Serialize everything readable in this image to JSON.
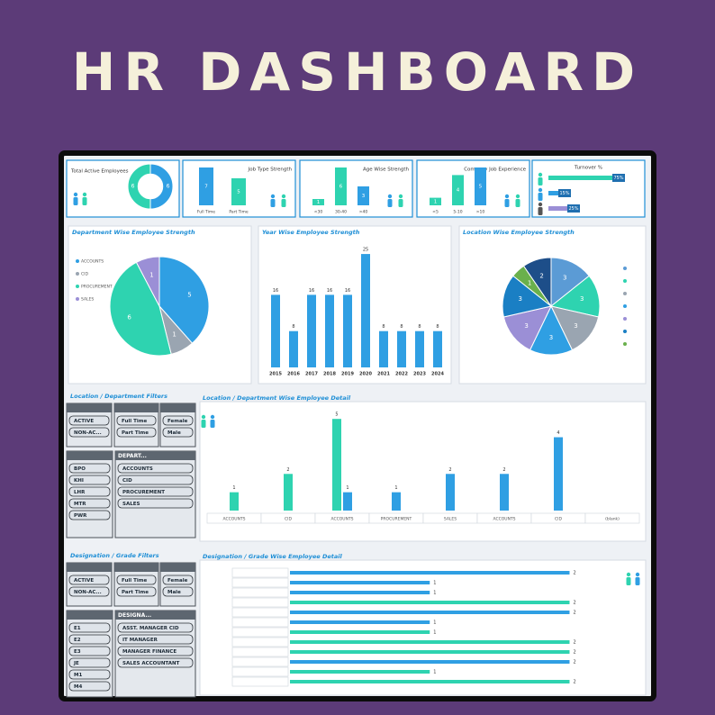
{
  "header": {
    "title": "HR DASHBOARD"
  },
  "kpis": [
    {
      "title": "Total Active Employees",
      "values": [
        6,
        6
      ],
      "colors": [
        "#2f9fe3",
        "#2ed3b0"
      ]
    },
    {
      "title": "Job Type Strength",
      "categories": [
        "Full Time",
        "Part Time"
      ],
      "values": [
        7,
        5
      ],
      "colors": [
        "#2f9fe3",
        "#2ed3b0"
      ]
    },
    {
      "title": "Age Wise Strength",
      "categories": [
        "<30",
        "30-40",
        ">40"
      ],
      "values": [
        1,
        6,
        3
      ],
      "colors": [
        "#2ed3b0",
        "#2ed3b0",
        "#2f9fe3"
      ]
    },
    {
      "title": "Company Job Experience",
      "categories": [
        "<5",
        "5-10",
        ">10"
      ],
      "values": [
        1,
        4,
        5
      ],
      "colors": [
        "#2ed3b0",
        "#2ed3b0",
        "#2f9fe3"
      ]
    },
    {
      "title": "Turnover %",
      "values": [
        75,
        15,
        25
      ],
      "value_labels": [
        "75%",
        "15%",
        "25%"
      ],
      "colors": [
        "#2ed3b0",
        "#2f9fe3",
        "#9b8fd6"
      ]
    }
  ],
  "department_chart": {
    "title": "Department Wise Employee Strength",
    "categories": [
      "ACCOUNTS",
      "CID",
      "PROCUREMENT",
      "SALES"
    ],
    "values": [
      5,
      1,
      6,
      1
    ],
    "colors": [
      "#2f9fe3",
      "#9aa5b1",
      "#2ed3b0",
      "#9b8fd6"
    ]
  },
  "year_chart": {
    "title": "Year Wise Employee Strength",
    "categories": [
      "2015",
      "2016",
      "2017",
      "2018",
      "2019",
      "2020",
      "2021",
      "2022",
      "2023",
      "2024"
    ],
    "values": [
      16,
      8,
      16,
      16,
      16,
      25,
      8,
      8,
      8,
      8
    ],
    "color": "#2f9fe3",
    "ylim": [
      0,
      27
    ]
  },
  "location_chart": {
    "title": "Location Wise Employee Strength",
    "values": [
      3,
      3,
      3,
      3,
      3,
      3,
      1,
      2
    ],
    "colors": [
      "#5b9bd5",
      "#2ed3b0",
      "#9aa5b1",
      "#2f9fe3",
      "#9b8fd6",
      "#1a7fc4",
      "#6ab04c",
      "#1d4e89"
    ]
  },
  "filters_1": {
    "title": "Location / Department Filters",
    "status": [
      "ACTIVE",
      "NON-AC..."
    ],
    "job_type": [
      "Full Time",
      "Part Time"
    ],
    "gender": [
      "Female",
      "Male"
    ],
    "group": [
      "BPO",
      "KHI",
      "LHR",
      "MTR",
      "PWR"
    ],
    "list": {
      "title": "DEPART...",
      "items": [
        "ACCOUNTS",
        "CID",
        "PROCUREMENT",
        "SALES"
      ]
    }
  },
  "detail_chart": {
    "title": "Location / Department Wise Employee Detail",
    "categories": [
      "ACCOUNTS",
      "CID",
      "ACCOUNTS",
      "PROCUREMENT",
      "SALES",
      "ACCOUNTS",
      "CID",
      "(blank)"
    ],
    "series": [
      {
        "color": "#2ed3b0",
        "values": [
          1,
          2,
          5,
          null,
          null,
          null,
          null,
          null
        ]
      },
      {
        "color": "#2f9fe3",
        "values": [
          null,
          null,
          1,
          1,
          2,
          2,
          4,
          null
        ]
      }
    ],
    "ylim": [
      0,
      5.5
    ]
  },
  "filters_2": {
    "title": "Designation / Grade Filters",
    "status": [
      "ACTIVE",
      "NON-AC..."
    ],
    "job_type": [
      "Full Time",
      "Part Time"
    ],
    "gender": [
      "Female",
      "Male"
    ],
    "group": [
      "E1",
      "E2",
      "E3",
      "JE",
      "M1",
      "M4"
    ],
    "list": {
      "title": "DESIGNA...",
      "items": [
        "ASST. MANAGER CID",
        "IT MANAGER",
        "MANAGER FINANCE",
        "SALES ACCOUNTANT"
      ]
    }
  },
  "designation_chart": {
    "title": "Designation / Grade Wise Employee Detail",
    "values": [
      2,
      1,
      1,
      2,
      2,
      1,
      1,
      2,
      2,
      2,
      1,
      2
    ],
    "colors": [
      "#2f9fe3",
      "#2f9fe3",
      "#2f9fe3",
      "#2ed3b0",
      "#2f9fe3",
      "#2f9fe3",
      "#2ed3b0",
      "#2ed3b0",
      "#2ed3b0",
      "#2f9fe3",
      "#2ed3b0",
      "#2ed3b0"
    ],
    "xlim": [
      0,
      2.1
    ]
  }
}
